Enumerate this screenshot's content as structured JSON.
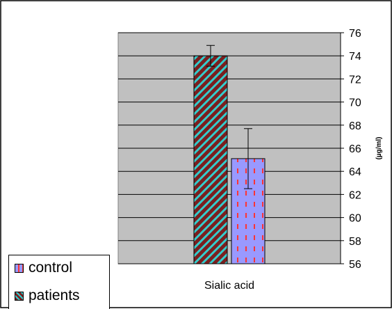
{
  "chart_data": {
    "type": "bar",
    "categories": [
      "Sialic acid"
    ],
    "series": [
      {
        "name": "patients",
        "values": [
          74.0
        ],
        "error": [
          0.9
        ],
        "color": "#7a1f1f",
        "stripe": "#33cccc"
      },
      {
        "name": "control",
        "values": [
          65.1
        ],
        "error": [
          2.6
        ],
        "color": "#9999ff",
        "stripe": "#ff3333"
      }
    ],
    "ylabel": "(µg/ml)",
    "ylim": [
      56,
      76
    ],
    "yticks": [
      56,
      58,
      60,
      62,
      64,
      66,
      68,
      70,
      72,
      74,
      76
    ],
    "y_axis_side": "right",
    "grid": true,
    "plot_background": "#c0c0c0",
    "legend_position": "bottom-left"
  },
  "legend": [
    {
      "label": "control",
      "icon": "dotted-purple-swatch"
    },
    {
      "label": "patients",
      "icon": "striped-maroon-cyan-swatch"
    }
  ]
}
